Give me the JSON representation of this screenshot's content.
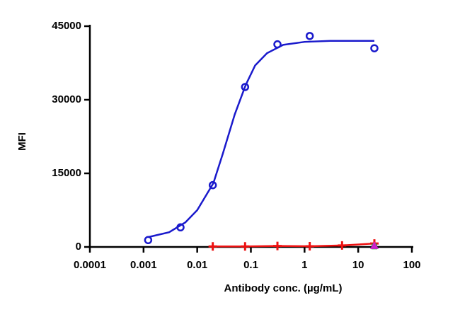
{
  "chart_data": {
    "type": "scatter",
    "x_label": "Antibody conc. (µg/mL)",
    "y_label": "MFI",
    "xscale": "log",
    "xlim": [
      0.0001,
      100
    ],
    "xticks": [
      0.0001,
      0.001,
      0.01,
      0.1,
      1,
      10,
      100
    ],
    "ylim": [
      0,
      45000
    ],
    "yticks": [
      0,
      15000,
      30000,
      45000
    ],
    "series": [
      {
        "color": "#1a1acc",
        "marker": "circle",
        "line": false,
        "x": [
          0.00122,
          0.00488,
          0.0195,
          0.078,
          0.3125,
          1.25,
          20
        ],
        "values": [
          1400,
          4000,
          12600,
          32600,
          41300,
          43000,
          40500
        ]
      },
      {
        "color": "#1a1acc",
        "marker": "none",
        "line": true,
        "x": [
          0.00122,
          0.003,
          0.006,
          0.01,
          0.02,
          0.03,
          0.05,
          0.08,
          0.12,
          0.2,
          0.4,
          1,
          3,
          20
        ],
        "values": [
          2000,
          3000,
          5000,
          7500,
          13000,
          19000,
          27000,
          33000,
          37000,
          39500,
          41200,
          41800,
          42000,
          42000
        ]
      },
      {
        "color": "#ee1111",
        "marker": "plus",
        "line": true,
        "x": [
          0.0195,
          0.078,
          0.3125,
          1.25,
          5,
          20
        ],
        "values": [
          100,
          100,
          200,
          150,
          300,
          700
        ]
      },
      {
        "color": "#22aa22",
        "marker": "square",
        "line": false,
        "x": [
          20
        ],
        "values": [
          100
        ]
      },
      {
        "color": "#cc22cc",
        "marker": "triangle",
        "line": false,
        "x": [
          20
        ],
        "values": [
          300
        ]
      }
    ]
  }
}
